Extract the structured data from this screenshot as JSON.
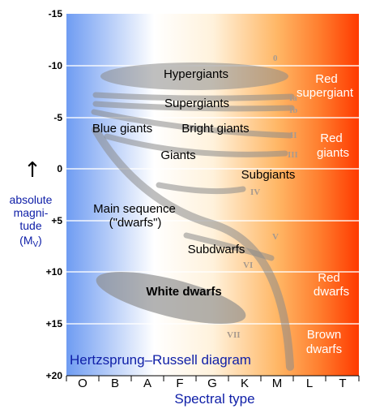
{
  "title": "Hertzsprung–Russell diagram",
  "y_axis": {
    "arrow": "↑",
    "label_lines": [
      "absolute",
      "magni-",
      "tude",
      "(M",
      ")"
    ],
    "label_subscript": "V",
    "ticks": [
      "-15",
      "-10",
      "-5",
      "0",
      "+5",
      "+10",
      "+15",
      "+20"
    ]
  },
  "x_axis": {
    "label": "Spectral type",
    "ticks": [
      "O",
      "B",
      "A",
      "F",
      "G",
      "K",
      "M",
      "L",
      "T"
    ]
  },
  "regions": {
    "hypergiants": "Hypergiants",
    "supergiants": "Supergiants",
    "blue_giants": "Blue giants",
    "bright_giants": "Bright giants",
    "giants": "Giants",
    "subgiants": "Subgiants",
    "main_sequence": "Main sequence",
    "dwarfs": "(\"dwarfs\")",
    "subdwarfs": "Subdwarfs",
    "white_dwarfs": "White dwarfs",
    "red_supergiant_1": "Red",
    "red_supergiant_2": "supergiant",
    "red_giants_1": "Red",
    "red_giants_2": "giants",
    "red_dwarfs_1": "Red",
    "red_dwarfs_2": "dwarfs",
    "brown_dwarfs_1": "Brown",
    "brown_dwarfs_2": "dwarfs"
  },
  "luminosity_classes": [
    "0",
    "Ia",
    "Ib",
    "II",
    "III",
    "IV",
    "V",
    "VI",
    "VII"
  ],
  "colors": {
    "hot": "#6f9cf2",
    "white": "#ffffff",
    "warm": "#ffbe70",
    "cool": "#ff6020",
    "coolest": "#ff3a00",
    "band": "#8a8a8a",
    "roman": "#a89a8e",
    "title": "#1020a8"
  }
}
